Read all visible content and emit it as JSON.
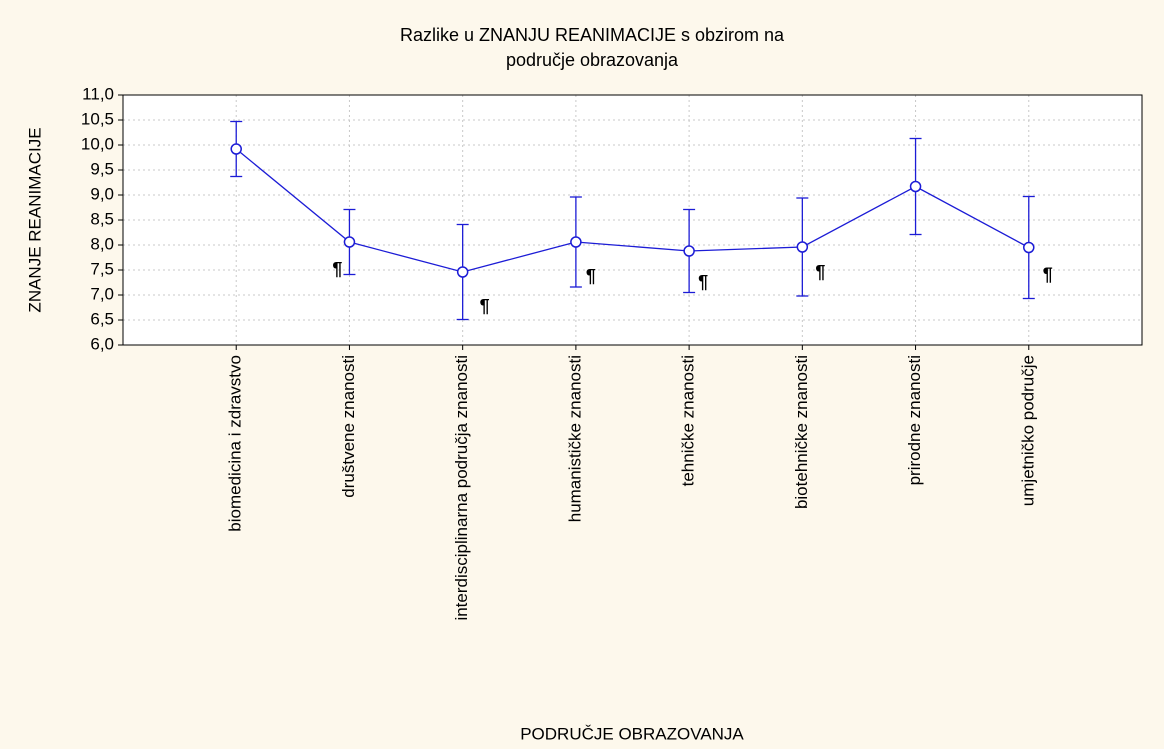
{
  "chart_data": {
    "type": "line",
    "title": [
      "Razlike u ZNANJU REANIMACIJE s obzirom na",
      "područje obrazovanja"
    ],
    "x_label": "PODRUČJE OBRAZOVANJA",
    "y_label": "ZNANJE REANIMACIJE",
    "categories": [
      "biomedicina i zdravstvo",
      "društvene znanosti",
      "interdisciplinarna područja znanosti",
      "humanističke znanosti",
      "tehničke znanosti",
      "biotehničke znanosti",
      "prirodne znanosti",
      "umjetničko područje"
    ],
    "series": [
      {
        "name": "ZNANJE REANIMACIJE",
        "color": "#1c1cd6",
        "values": [
          9.92,
          8.06,
          7.46,
          8.06,
          7.88,
          7.96,
          9.17,
          7.95
        ],
        "errors": [
          0.55,
          0.65,
          0.95,
          0.9,
          0.83,
          0.98,
          0.96,
          1.02
        ]
      }
    ],
    "annotations": [
      null,
      "¶",
      "¶",
      "¶",
      "¶",
      "¶",
      null,
      "¶"
    ],
    "ylim": [
      6,
      11
    ],
    "yticks": [
      {
        "value": 6,
        "label": "6,0"
      },
      {
        "value": 6.5,
        "label": "6,5"
      },
      {
        "value": 7,
        "label": "7,0"
      },
      {
        "value": 7.5,
        "label": "7,5"
      },
      {
        "value": 8,
        "label": "8,0"
      },
      {
        "value": 8.5,
        "label": "8,5"
      },
      {
        "value": 9,
        "label": "9,0"
      },
      {
        "value": 9.5,
        "label": "9,5"
      },
      {
        "value": 10,
        "label": "10,0"
      },
      {
        "value": 10.5,
        "label": "10,5"
      },
      {
        "value": 11,
        "label": "11,0"
      }
    ],
    "grid": true
  }
}
